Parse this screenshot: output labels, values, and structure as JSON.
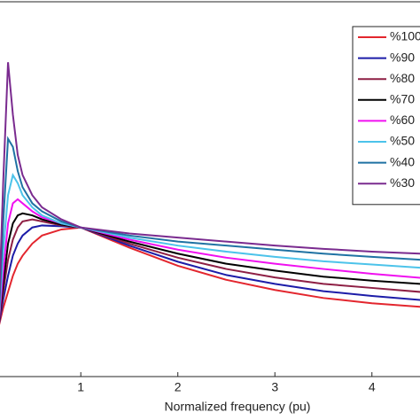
{
  "chart_data": {
    "type": "line",
    "xlabel": "Normalized frequency (pu)",
    "x": [
      0.15,
      0.2,
      0.25,
      0.3,
      0.35,
      0.4,
      0.5,
      0.6,
      0.8,
      1,
      1.5,
      2,
      2.5,
      3,
      3.5,
      4,
      4.5
    ],
    "xlim": [
      0.16,
      4.5
    ],
    "xticks": [
      1,
      2,
      3,
      4
    ],
    "ylim": [
      0.07,
      1.0
    ],
    "legend": "upper right",
    "series": [
      {
        "name": "%100",
        "color": "#e3262e",
        "values": [
          0.19,
          0.24,
          0.28,
          0.32,
          0.35,
          0.37,
          0.4,
          0.42,
          0.435,
          0.44,
          0.39,
          0.345,
          0.31,
          0.285,
          0.265,
          0.252,
          0.243
        ]
      },
      {
        "name": "%90",
        "color": "#1c1ca8",
        "values": [
          0.19,
          0.26,
          0.32,
          0.37,
          0.4,
          0.42,
          0.44,
          0.445,
          0.443,
          0.44,
          0.395,
          0.355,
          0.322,
          0.3,
          0.282,
          0.27,
          0.26
        ]
      },
      {
        "name": "%80",
        "color": "#8e1f44",
        "values": [
          0.19,
          0.28,
          0.36,
          0.41,
          0.44,
          0.455,
          0.46,
          0.455,
          0.445,
          0.44,
          0.4,
          0.365,
          0.337,
          0.316,
          0.3,
          0.29,
          0.28
        ]
      },
      {
        "name": "%70",
        "color": "#000000",
        "values": [
          0.19,
          0.3,
          0.4,
          0.45,
          0.47,
          0.475,
          0.47,
          0.46,
          0.447,
          0.44,
          0.405,
          0.375,
          0.35,
          0.333,
          0.318,
          0.308,
          0.3
        ]
      },
      {
        "name": "%60",
        "color": "#f010f0",
        "values": [
          0.19,
          0.33,
          0.45,
          0.5,
          0.51,
          0.5,
          0.48,
          0.465,
          0.45,
          0.44,
          0.41,
          0.385,
          0.365,
          0.35,
          0.337,
          0.325,
          0.315
        ]
      },
      {
        "name": "%50",
        "color": "#4cc3ea",
        "values": [
          0.19,
          0.38,
          0.52,
          0.57,
          0.55,
          0.52,
          0.49,
          0.47,
          0.45,
          0.44,
          0.415,
          0.395,
          0.38,
          0.367,
          0.356,
          0.348,
          0.34
        ]
      },
      {
        "name": "%40",
        "color": "#1f72a3",
        "values": [
          0.19,
          0.45,
          0.66,
          0.64,
          0.58,
          0.54,
          0.5,
          0.48,
          0.455,
          0.44,
          0.42,
          0.405,
          0.395,
          0.385,
          0.375,
          0.367,
          0.36
        ]
      },
      {
        "name": "%30",
        "color": "#7a2b8f",
        "values": [
          0.19,
          0.55,
          0.85,
          0.72,
          0.62,
          0.57,
          0.52,
          0.49,
          0.46,
          0.44,
          0.425,
          0.415,
          0.405,
          0.395,
          0.387,
          0.38,
          0.375
        ]
      }
    ]
  }
}
